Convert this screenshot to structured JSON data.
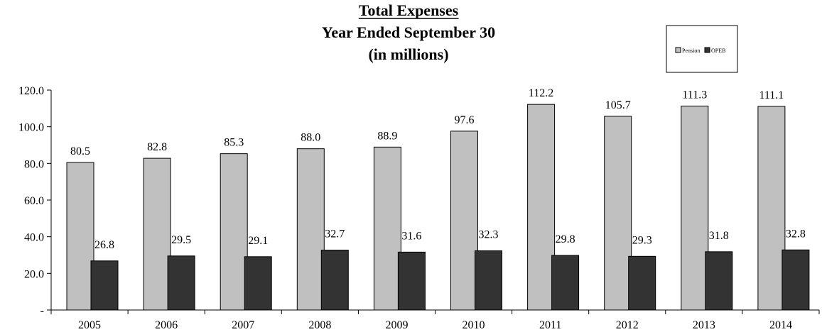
{
  "chart_data": {
    "type": "bar",
    "title": "Total Expenses",
    "subtitle": [
      "Year Ended September 30",
      "(in millions)"
    ],
    "categories": [
      "2005",
      "2006",
      "2007",
      "2008",
      "2009",
      "2010",
      "2011",
      "2012",
      "2013",
      "2014"
    ],
    "series": [
      {
        "name": "Pension",
        "color": "#c0c0c0",
        "values": [
          80.5,
          82.8,
          85.3,
          88.0,
          88.9,
          97.6,
          112.2,
          105.7,
          111.3,
          111.1
        ],
        "labels": [
          "80.5",
          "82.8",
          "85.3",
          "88.0",
          "88.9",
          "97.6",
          "112.2",
          "105.7",
          "111.3",
          "111.1"
        ]
      },
      {
        "name": "OPEB",
        "color": "#333333",
        "values": [
          26.8,
          29.5,
          29.1,
          32.7,
          31.6,
          32.3,
          29.8,
          29.3,
          31.8,
          32.8
        ],
        "labels": [
          "26.8",
          "29.5",
          "29.1",
          "32.7",
          "31.6",
          "32.3",
          "29.8",
          "29.3",
          "31.8",
          "32.8"
        ]
      }
    ],
    "y_ticks": [
      {
        "value": 0,
        "label": "-"
      },
      {
        "value": 20,
        "label": "20.0"
      },
      {
        "value": 40,
        "label": "40.0"
      },
      {
        "value": 60,
        "label": "60.0"
      },
      {
        "value": 80,
        "label": "80.0"
      },
      {
        "value": 100,
        "label": "100.0"
      },
      {
        "value": 120,
        "label": "120.0"
      }
    ],
    "ylim": [
      0,
      120
    ],
    "grid": false,
    "legend_position": "top-right"
  }
}
